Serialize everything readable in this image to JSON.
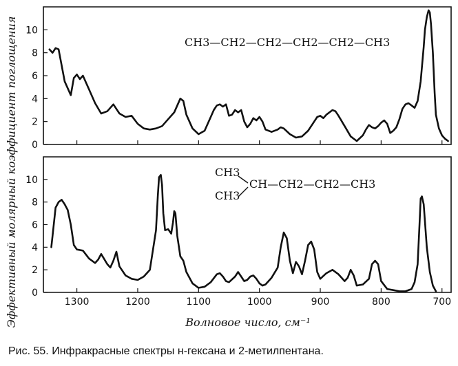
{
  "figure": {
    "caption": "Рис. 55.  Инфракрасные спектры н-гексана и 2-метилпентана.",
    "x_axis_label": "Волновое число, см⁻¹",
    "y_axis_label": "Эффективный молярный коэффициент поглощения",
    "top_formula": "CH3—CH2—CH2—CH2—CH2—CH3",
    "bottom_formula_branch_upper": "CH3",
    "bottom_formula_branch_lower": "CH3",
    "bottom_formula_chain": "CH—CH2—CH2—CH3"
  },
  "colors": {
    "line": "#111111",
    "frame": "#111111",
    "background": "#ffffff"
  },
  "chart_data": [
    {
      "type": "line",
      "title": "",
      "xlabel": "Волновое число, см⁻¹",
      "ylabel": "Эффективный молярный коэффициент поглощения",
      "xlim": [
        1355,
        685
      ],
      "ylim": [
        0,
        12
      ],
      "x_reversed": true,
      "xticks": [
        1300,
        1200,
        1100,
        1000,
        900,
        800,
        700
      ],
      "yticks": [
        0,
        2,
        4,
        6,
        8,
        10
      ],
      "series": [
        {
          "x": [
            1345,
            1340,
            1335,
            1330,
            1320,
            1310,
            1305,
            1300,
            1295,
            1290,
            1280,
            1270,
            1260,
            1250,
            1240,
            1230,
            1220,
            1210,
            1200,
            1190,
            1180,
            1170,
            1160,
            1150,
            1140,
            1135,
            1130,
            1125,
            1120,
            1110,
            1100,
            1090,
            1080,
            1075,
            1070,
            1065,
            1060,
            1055,
            1050,
            1045,
            1040,
            1035,
            1030,
            1025,
            1020,
            1015,
            1010,
            1005,
            1000,
            995,
            990,
            980,
            970,
            965,
            960,
            950,
            940,
            930,
            920,
            910,
            905,
            900,
            895,
            890,
            880,
            875,
            870,
            860,
            850,
            840,
            830,
            825,
            820,
            815,
            810,
            805,
            800,
            795,
            790,
            785,
            780,
            775,
            770,
            765,
            760,
            755,
            750,
            745,
            740,
            735,
            730,
            728,
            725,
            722,
            720,
            718,
            715,
            712,
            710,
            705,
            700,
            695,
            690
          ],
          "values": [
            8.3,
            8.0,
            8.4,
            8.3,
            5.5,
            4.3,
            5.8,
            6.1,
            5.7,
            6.0,
            4.8,
            3.6,
            2.7,
            2.9,
            3.5,
            2.7,
            2.4,
            2.5,
            1.8,
            1.4,
            1.3,
            1.4,
            1.6,
            2.2,
            2.8,
            3.4,
            4.0,
            3.8,
            2.6,
            1.4,
            0.9,
            1.2,
            2.4,
            3.0,
            3.4,
            3.5,
            3.3,
            3.5,
            2.5,
            2.6,
            3.0,
            2.8,
            3.0,
            2.0,
            1.5,
            1.8,
            2.3,
            2.1,
            2.4,
            2.0,
            1.3,
            1.1,
            1.3,
            1.5,
            1.4,
            0.9,
            0.6,
            0.7,
            1.2,
            2.0,
            2.4,
            2.5,
            2.3,
            2.6,
            3.0,
            2.9,
            2.5,
            1.6,
            0.7,
            0.3,
            0.8,
            1.3,
            1.7,
            1.5,
            1.4,
            1.6,
            1.9,
            2.1,
            1.8,
            1.0,
            1.2,
            1.5,
            2.2,
            3.1,
            3.5,
            3.6,
            3.4,
            3.2,
            3.8,
            5.5,
            8.5,
            10.0,
            11.1,
            11.7,
            11.5,
            10.5,
            8.0,
            4.5,
            2.6,
            1.4,
            0.8,
            0.5,
            0.3
          ]
        }
      ]
    },
    {
      "type": "line",
      "title": "",
      "xlabel": "Волновое число, см⁻¹",
      "ylabel": "Эффективный молярный коэффициент поглощения",
      "xlim": [
        1355,
        685
      ],
      "ylim": [
        0,
        12
      ],
      "x_reversed": true,
      "xticks": [
        1300,
        1200,
        1100,
        1000,
        900,
        800,
        700
      ],
      "yticks": [
        0,
        2,
        4,
        6,
        8,
        10
      ],
      "series": [
        {
          "x": [
            1342,
            1340,
            1335,
            1330,
            1325,
            1320,
            1315,
            1310,
            1305,
            1300,
            1290,
            1280,
            1270,
            1265,
            1260,
            1250,
            1245,
            1240,
            1235,
            1230,
            1220,
            1210,
            1200,
            1190,
            1180,
            1170,
            1167,
            1165,
            1162,
            1160,
            1158,
            1155,
            1150,
            1145,
            1142,
            1140,
            1138,
            1135,
            1130,
            1125,
            1120,
            1110,
            1100,
            1090,
            1080,
            1070,
            1065,
            1060,
            1055,
            1050,
            1040,
            1035,
            1030,
            1025,
            1020,
            1015,
            1010,
            1005,
            1000,
            995,
            990,
            980,
            970,
            965,
            960,
            955,
            950,
            945,
            940,
            935,
            930,
            925,
            920,
            915,
            910,
            905,
            900,
            890,
            880,
            870,
            860,
            855,
            850,
            845,
            840,
            830,
            820,
            815,
            810,
            805,
            800,
            790,
            780,
            770,
            760,
            750,
            745,
            740,
            737,
            735,
            733,
            730,
            725,
            720,
            715,
            710
          ],
          "values": [
            4.0,
            5.0,
            7.5,
            8.0,
            8.2,
            7.8,
            7.3,
            6.0,
            4.2,
            3.8,
            3.7,
            3.0,
            2.6,
            2.9,
            3.4,
            2.5,
            2.2,
            2.8,
            3.6,
            2.3,
            1.5,
            1.2,
            1.1,
            1.4,
            2.0,
            5.5,
            8.5,
            10.2,
            10.4,
            9.5,
            7.0,
            5.5,
            5.6,
            5.2,
            6.2,
            7.2,
            7.0,
            5.0,
            3.2,
            2.8,
            1.8,
            0.8,
            0.4,
            0.5,
            0.9,
            1.6,
            1.7,
            1.4,
            1.0,
            0.9,
            1.4,
            1.8,
            1.4,
            1.0,
            1.1,
            1.4,
            1.5,
            1.2,
            0.8,
            0.6,
            0.7,
            1.3,
            2.2,
            4.0,
            5.3,
            4.8,
            2.8,
            1.7,
            2.7,
            2.3,
            1.6,
            2.8,
            4.2,
            4.5,
            3.8,
            1.8,
            1.2,
            1.7,
            2.0,
            1.6,
            1.0,
            1.3,
            2.0,
            1.5,
            0.6,
            0.7,
            1.2,
            2.5,
            2.8,
            2.5,
            1.0,
            0.3,
            0.2,
            0.1,
            0.1,
            0.3,
            0.9,
            2.5,
            6.0,
            8.3,
            8.5,
            7.8,
            4.0,
            1.8,
            0.6,
            0.1
          ]
        }
      ]
    }
  ]
}
